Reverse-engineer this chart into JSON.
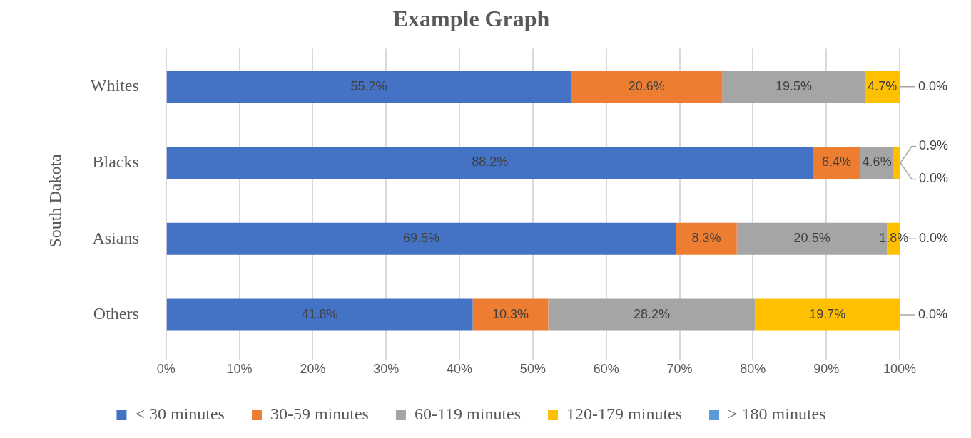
{
  "chart_data": {
    "type": "bar",
    "orientation": "horizontal",
    "stacked": true,
    "title": "Example Graph",
    "ylabel": "South Dakota",
    "categories": [
      "Whites",
      "Blacks",
      "Asians",
      "Others"
    ],
    "series": [
      {
        "name": "< 30 minutes",
        "color": "#4472c4",
        "values": [
          55.2,
          88.2,
          69.5,
          41.8
        ],
        "value_labels": [
          "55.2%",
          "88.2%",
          "69.5%",
          "41.8%"
        ]
      },
      {
        "name": "30-59 minutes",
        "color": "#ed7d31",
        "values": [
          20.6,
          6.4,
          8.3,
          10.3
        ],
        "value_labels": [
          "20.6%",
          "6.4%",
          "8.3%",
          "10.3%"
        ]
      },
      {
        "name": "60-119 minutes",
        "color": "#a5a5a5",
        "values": [
          19.5,
          4.6,
          20.5,
          28.2
        ],
        "value_labels": [
          "19.5%",
          "4.6%",
          "20.5%",
          "28.2%"
        ]
      },
      {
        "name": "120-179 minutes",
        "color": "#ffc000",
        "values": [
          4.7,
          0.9,
          1.8,
          19.7
        ],
        "value_labels": [
          "4.7%",
          "0.9%",
          "1.8%",
          "19.7%"
        ]
      },
      {
        "name": "> 180 minutes",
        "color": "#5b9bd5",
        "values": [
          0.0,
          0.0,
          0.0,
          0.0
        ],
        "value_labels": [
          "0.0%",
          "0.0%",
          "0.0%",
          "0.0%"
        ]
      }
    ],
    "xlim": [
      0,
      100
    ],
    "xticks": [
      {
        "value": 0,
        "label": "0%"
      },
      {
        "value": 10,
        "label": "10%"
      },
      {
        "value": 20,
        "label": "20%"
      },
      {
        "value": 30,
        "label": "30%"
      },
      {
        "value": 40,
        "label": "40%"
      },
      {
        "value": 50,
        "label": "50%"
      },
      {
        "value": 60,
        "label": "60%"
      },
      {
        "value": 70,
        "label": "70%"
      },
      {
        "value": 80,
        "label": "80%"
      },
      {
        "value": 90,
        "label": "90%"
      },
      {
        "value": 100,
        "label": "100%"
      }
    ],
    "grid": "x",
    "legend": "bottom"
  }
}
